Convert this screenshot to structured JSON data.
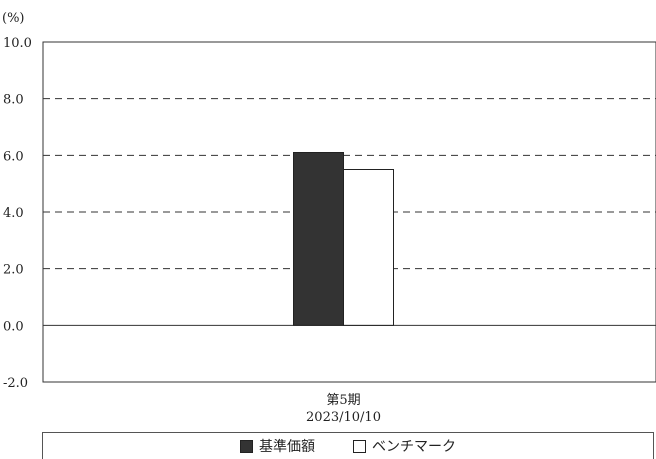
{
  "chart_data": {
    "type": "bar",
    "unit_label": "(%)",
    "categories": [
      "第5期\n2023/10/10"
    ],
    "series": [
      {
        "name": "基準価額",
        "values": [
          6.1
        ],
        "color": "#333333"
      },
      {
        "name": "ベンチマーク",
        "values": [
          5.5
        ],
        "color": "#ffffff"
      }
    ],
    "ylim": [
      -2.0,
      10.0
    ],
    "yticks": [
      "10.0",
      "8.0",
      "6.0",
      "4.0",
      "2.0",
      "0.0",
      "-2.0"
    ],
    "grid": "dashed",
    "legend_position": "bottom"
  }
}
